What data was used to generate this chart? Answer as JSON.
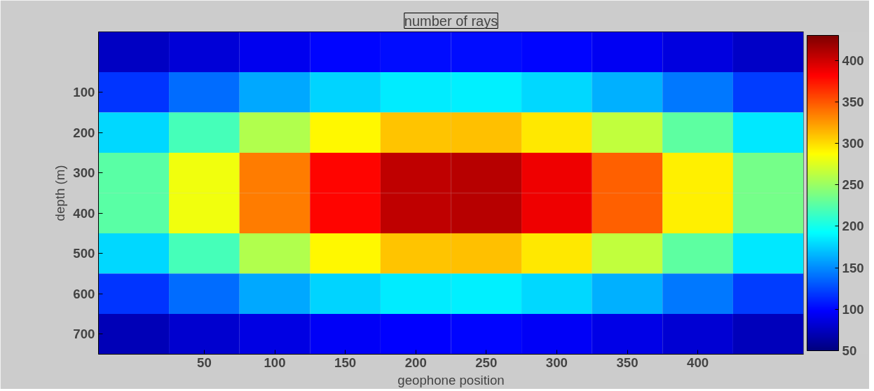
{
  "chart_data": {
    "type": "heatmap",
    "title": "number of rays",
    "xlabel": "geophone position",
    "ylabel": "depth (m)",
    "categories": [
      null,
      "50",
      "100",
      "150",
      "200",
      "250",
      "300",
      "350",
      "400",
      null
    ],
    "y_categories": [
      null,
      "100",
      "200",
      "300",
      "400",
      "500",
      "600",
      "700"
    ],
    "cells": [
      [
        76,
        84,
        92,
        99,
        102,
        103,
        99,
        94,
        86,
        77
      ],
      [
        117,
        139,
        160,
        177,
        186,
        187,
        179,
        163,
        143,
        121
      ],
      [
        178,
        218,
        258,
        290,
        309,
        311,
        295,
        265,
        227,
        185
      ],
      [
        226,
        282,
        336,
        381,
        406,
        409,
        387,
        346,
        293,
        236
      ],
      [
        226,
        282,
        336,
        381,
        406,
        409,
        387,
        346,
        293,
        236
      ],
      [
        178,
        218,
        258,
        290,
        309,
        311,
        295,
        265,
        227,
        185
      ],
      [
        117,
        139,
        160,
        177,
        186,
        187,
        179,
        163,
        143,
        121
      ],
      [
        72,
        80,
        88,
        95,
        98,
        99,
        95,
        90,
        82,
        73
      ]
    ],
    "clim": [
      50,
      430
    ],
    "cticks": [
      50,
      100,
      150,
      200,
      250,
      300,
      350,
      400
    ],
    "grid": false
  }
}
